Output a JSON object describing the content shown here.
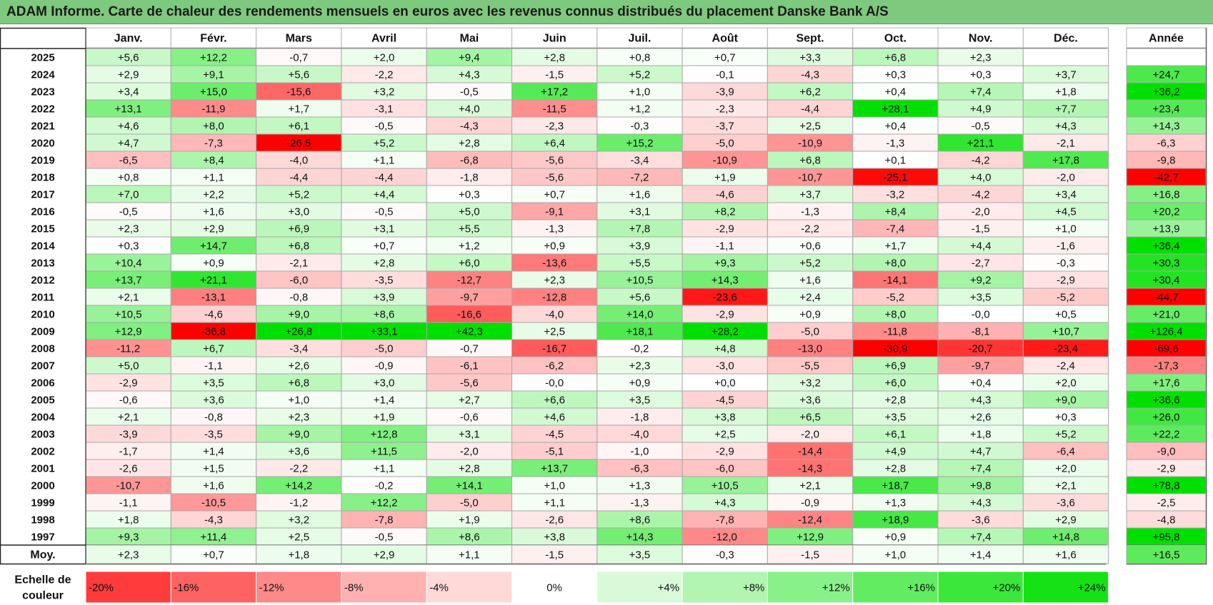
{
  "title": "ADAM Informe. Carte de chaleur des rendements mensuels en euros avec les revenus connus distribués du placement Danske Bank A/S",
  "chart_data": {
    "type": "heatmap",
    "columns": [
      "Janv.",
      "Févr.",
      "Mars",
      "Avril",
      "Mai",
      "Juin",
      "Juil.",
      "Août",
      "Sept.",
      "Oct.",
      "Nov.",
      "Déc."
    ],
    "year_column_label": "Année",
    "rows": [
      {
        "year": "2025",
        "months": [
          "+5,6",
          "+12,2",
          "-0,7",
          "+2,0",
          "+9,4",
          "+2,8",
          "+0,8",
          "+0,7",
          "+3,3",
          "+6,8",
          "+2,3",
          ""
        ],
        "annual": ""
      },
      {
        "year": "2024",
        "months": [
          "+2,9",
          "+9,1",
          "+5,6",
          "-2,2",
          "+4,3",
          "-1,5",
          "+5,2",
          "-0,1",
          "-4,3",
          "+0,3",
          "+0,3",
          "+3,7"
        ],
        "annual": "+24,7"
      },
      {
        "year": "2023",
        "months": [
          "+3,4",
          "+15,0",
          "-15,6",
          "+3,2",
          "-0,5",
          "+17,2",
          "+1,0",
          "-3,9",
          "+6,2",
          "+0,4",
          "+7,4",
          "+1,8"
        ],
        "annual": "+36,2"
      },
      {
        "year": "2022",
        "months": [
          "+13,1",
          "-11,9",
          "+1,7",
          "-3,1",
          "+4,0",
          "-11,5",
          "+1,2",
          "-2,3",
          "-4,4",
          "+28,1",
          "+4,9",
          "+7,7"
        ],
        "annual": "+23,4"
      },
      {
        "year": "2021",
        "months": [
          "+4,6",
          "+8,0",
          "+6,1",
          "-0,5",
          "-4,3",
          "-2,3",
          "-0,3",
          "-3,7",
          "+2,5",
          "+0,4",
          "-0,5",
          "+4,3"
        ],
        "annual": "+14,3"
      },
      {
        "year": "2020",
        "months": [
          "+4,7",
          "-7,3",
          "-26,5",
          "+5,2",
          "+2,8",
          "+6,4",
          "+15,2",
          "-5,0",
          "-10,9",
          "-1,3",
          "+21,1",
          "-2,1"
        ],
        "annual": "-6,3"
      },
      {
        "year": "2019",
        "months": [
          "-6,5",
          "+8,4",
          "-4,0",
          "+1,1",
          "-6,8",
          "-5,6",
          "-3,4",
          "-10,9",
          "+6,8",
          "+0,1",
          "-4,2",
          "+17,8"
        ],
        "annual": "-9,8"
      },
      {
        "year": "2018",
        "months": [
          "+0,8",
          "+1,1",
          "-4,4",
          "-4,4",
          "-1,8",
          "-5,6",
          "-7,2",
          "+1,9",
          "-10,7",
          "-25,1",
          "+4,0",
          "-2,0"
        ],
        "annual": "-42,7"
      },
      {
        "year": "2017",
        "months": [
          "+7,0",
          "+2,2",
          "+5,2",
          "+4,4",
          "+0,3",
          "+0,7",
          "+1,6",
          "-4,6",
          "+3,7",
          "-3,2",
          "-4,2",
          "+3,4"
        ],
        "annual": "+16,8"
      },
      {
        "year": "2016",
        "months": [
          "-0,5",
          "+1,6",
          "+3,0",
          "-0,5",
          "+5,0",
          "-9,1",
          "+3,1",
          "+8,2",
          "-1,3",
          "+8,4",
          "-2,0",
          "+4,5"
        ],
        "annual": "+20,2"
      },
      {
        "year": "2015",
        "months": [
          "+2,3",
          "+2,9",
          "+6,9",
          "+3,1",
          "+5,5",
          "-1,3",
          "+7,8",
          "-2,9",
          "-2,2",
          "-7,4",
          "-1,5",
          "+1,0"
        ],
        "annual": "+13,9"
      },
      {
        "year": "2014",
        "months": [
          "+0,3",
          "+14,7",
          "+6,8",
          "+0,7",
          "+1,2",
          "+0,9",
          "+3,9",
          "-1,1",
          "+0,6",
          "+1,7",
          "+4,4",
          "-1,6"
        ],
        "annual": "+36,4"
      },
      {
        "year": "2013",
        "months": [
          "+10,4",
          "+0,9",
          "-2,1",
          "+2,8",
          "+6,0",
          "-13,6",
          "+5,5",
          "+9,3",
          "+5,2",
          "+8,0",
          "-2,7",
          "-0,3"
        ],
        "annual": "+30,3"
      },
      {
        "year": "2012",
        "months": [
          "+13,7",
          "+21,1",
          "-6,0",
          "-3,5",
          "-12,7",
          "+2,3",
          "+10,5",
          "+14,3",
          "+1,6",
          "-14,1",
          "+9,2",
          "-2,9"
        ],
        "annual": "+30,4"
      },
      {
        "year": "2011",
        "months": [
          "+2,1",
          "-13,1",
          "-0,8",
          "+3,9",
          "-9,7",
          "-12,8",
          "+5,6",
          "-23,6",
          "+2,4",
          "-5,2",
          "+3,5",
          "-5,2"
        ],
        "annual": "-44,7"
      },
      {
        "year": "2010",
        "months": [
          "+10,5",
          "-4,6",
          "+9,0",
          "+8,6",
          "-16,6",
          "-4,0",
          "+14,0",
          "-2,9",
          "+0,9",
          "+8,0",
          "-0,0",
          "+0,5"
        ],
        "annual": "+21,0"
      },
      {
        "year": "2009",
        "months": [
          "+12,9",
          "-36,8",
          "+26,8",
          "+33,1",
          "+42,3",
          "+2,5",
          "+18,1",
          "+28,2",
          "-5,0",
          "-11,8",
          "-8,1",
          "+10,7"
        ],
        "annual": "+126,4"
      },
      {
        "year": "2008",
        "months": [
          "-11,2",
          "+6,7",
          "-3,4",
          "-5,0",
          "-0,7",
          "-16,7",
          "-0,2",
          "+4,8",
          "-13,0",
          "-30,9",
          "-20,7",
          "-23,4"
        ],
        "annual": "-69,6"
      },
      {
        "year": "2007",
        "months": [
          "+5,0",
          "-1,1",
          "+2,6",
          "-0,9",
          "-6,1",
          "-6,2",
          "+2,3",
          "-3,0",
          "-5,5",
          "+6,9",
          "-9,7",
          "-2,4"
        ],
        "annual": "-17,3"
      },
      {
        "year": "2006",
        "months": [
          "-2,9",
          "+3,5",
          "+6,8",
          "+3,0",
          "-5,6",
          "-0,0",
          "+0,9",
          "+0,0",
          "+3,2",
          "+6,0",
          "+0,4",
          "+2,0"
        ],
        "annual": "+17,6"
      },
      {
        "year": "2005",
        "months": [
          "-0,6",
          "+3,6",
          "+1,0",
          "+1,4",
          "+2,7",
          "+6,6",
          "+3,5",
          "-4,5",
          "+3,6",
          "+2,8",
          "+4,3",
          "+9,0"
        ],
        "annual": "+36,6"
      },
      {
        "year": "2004",
        "months": [
          "+2,1",
          "-0,8",
          "+2,3",
          "+1,9",
          "-0,6",
          "+4,6",
          "-1,8",
          "+3,8",
          "+6,5",
          "+3,5",
          "+2,6",
          "+0,3"
        ],
        "annual": "+26,0"
      },
      {
        "year": "2003",
        "months": [
          "-3,9",
          "-3,5",
          "+9,0",
          "+12,8",
          "+3,1",
          "-4,5",
          "-4,0",
          "+2,5",
          "-2,0",
          "+6,1",
          "+1,8",
          "+5,2"
        ],
        "annual": "+22,2"
      },
      {
        "year": "2002",
        "months": [
          "-1,7",
          "+1,4",
          "+3,6",
          "+11,5",
          "-2,0",
          "-5,1",
          "-1,0",
          "-2,9",
          "-14,4",
          "+4,9",
          "+4,7",
          "-6,4"
        ],
        "annual": "-9,0"
      },
      {
        "year": "2001",
        "months": [
          "-2,6",
          "+1,5",
          "-2,2",
          "+1,1",
          "+2,8",
          "+13,7",
          "-6,3",
          "-6,0",
          "-14,3",
          "+2,8",
          "+7,4",
          "+2,0"
        ],
        "annual": "-2,9"
      },
      {
        "year": "2000",
        "months": [
          "-10,7",
          "+1,6",
          "+14,2",
          "-0,2",
          "+14,1",
          "+1,0",
          "+1,3",
          "+10,5",
          "+2,1",
          "+18,7",
          "+9,8",
          "+2,1"
        ],
        "annual": "+78,8"
      },
      {
        "year": "1999",
        "months": [
          "-1,1",
          "-10,5",
          "-1,2",
          "+12,2",
          "-5,0",
          "+1,1",
          "-1,3",
          "+4,3",
          "-0,9",
          "+1,3",
          "+4,3",
          "-3,6"
        ],
        "annual": "-2,5"
      },
      {
        "year": "1998",
        "months": [
          "+1,8",
          "-4,3",
          "+3,2",
          "-7,8",
          "+1,9",
          "-2,6",
          "+8,6",
          "-7,8",
          "-12,4",
          "+18,9",
          "-3,6",
          "+2,9"
        ],
        "annual": "-4,8"
      },
      {
        "year": "1997",
        "months": [
          "+9,3",
          "+11,4",
          "+2,5",
          "-0,5",
          "+8,6",
          "+3,8",
          "+14,3",
          "-12,0",
          "+12,9",
          "+0,9",
          "+7,4",
          "+14,8"
        ],
        "annual": "+95,8"
      }
    ],
    "average": {
      "label": "Moy.",
      "months": [
        "+2,3",
        "+0,7",
        "+1,8",
        "+2,9",
        "+1,1",
        "-1,5",
        "+3,5",
        "-0,3",
        "-1,5",
        "+1,0",
        "+1,4",
        "+1,6"
      ],
      "annual": "+16,5"
    },
    "legend": {
      "label_line1": "Echelle de",
      "label_line2": "couleur",
      "steps": [
        "-20%",
        "-16%",
        "-12%",
        "-8%",
        "-4%",
        "0%",
        "+4%",
        "+8%",
        "+12%",
        "+16%",
        "+20%",
        "+24%"
      ],
      "step_values": [
        -20,
        -16,
        -12,
        -8,
        -4,
        0,
        4,
        8,
        12,
        16,
        20,
        24
      ]
    },
    "colors": {
      "min_red": "#ff0000",
      "neutral": "#ffffff",
      "max_green": "#00e000",
      "title_bar": "#7dc97d"
    }
  }
}
